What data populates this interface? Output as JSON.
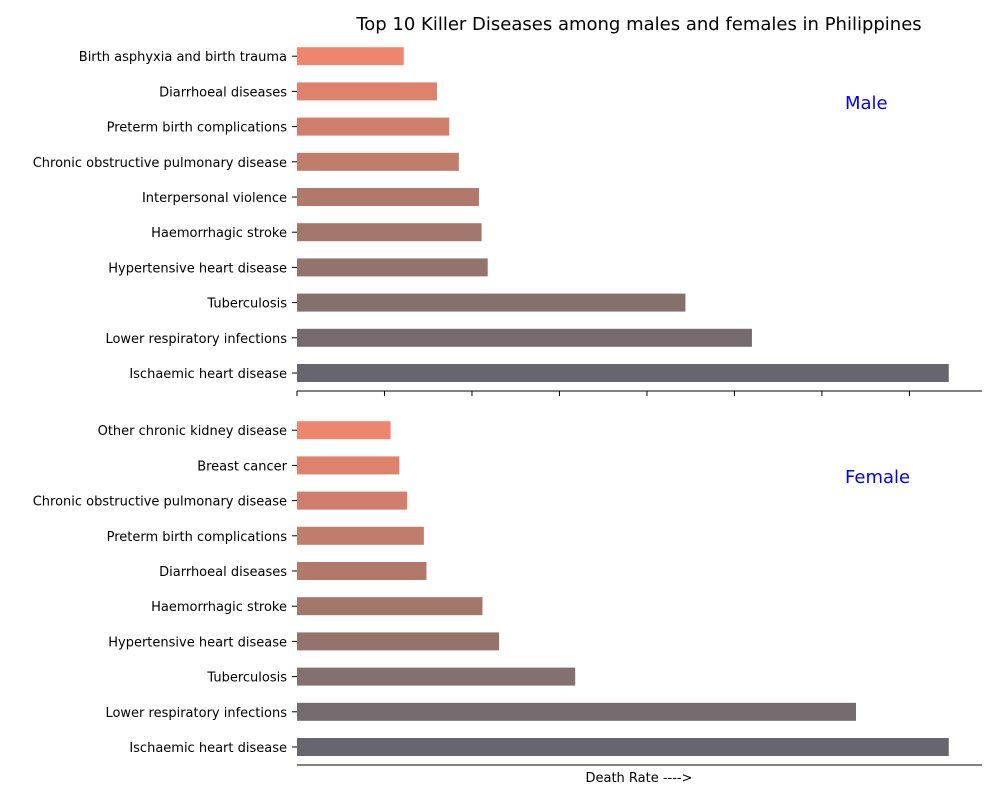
{
  "chart_data": {
    "type": "bar",
    "orientation": "horizontal",
    "title": "Top 10 Killer Diseases among males and females in Philippines",
    "xlabel": "Death Rate ---->",
    "colors": [
      "#67666e",
      "#756a6d",
      "#84706c",
      "#93736b",
      "#a2766b",
      "#b1796a",
      "#c07d6b",
      "#cf7f6b",
      "#de826d",
      "#ee866d"
    ],
    "panels": [
      {
        "name": "Male",
        "label_color": "#0000ff",
        "categories": [
          "Ischaemic heart disease",
          "Lower respiratory infections",
          "Tuberculosis",
          "Hypertensive heart disease",
          "Haemorrhagic stroke",
          "Interpersonal violence",
          "Chronic obstructive pulmonary disease",
          "Preterm birth complications",
          "Diarrhoeal diseases",
          "Birth asphyxia and birth trauma"
        ],
        "values": [
          74.5,
          52.0,
          44.4,
          21.8,
          21.1,
          20.8,
          18.5,
          17.4,
          16.0,
          12.2
        ]
      },
      {
        "name": "Female",
        "label_color": "#0000ff",
        "categories": [
          "Ischaemic heart disease",
          "Lower respiratory infections",
          "Tuberculosis",
          "Hypertensive heart disease",
          "Haemorrhagic stroke",
          "Diarrhoeal diseases",
          "Preterm birth complications",
          "Chronic obstructive pulmonary disease",
          "Breast cancer",
          "Other chronic kidney disease"
        ],
        "values": [
          74.5,
          63.9,
          31.8,
          23.1,
          21.2,
          14.8,
          14.5,
          12.6,
          11.7,
          10.7
        ]
      }
    ],
    "xlim": [
      0,
      78.3
    ],
    "xticks": [
      0,
      10,
      20,
      30,
      40,
      50,
      60,
      70
    ],
    "grid": false
  }
}
